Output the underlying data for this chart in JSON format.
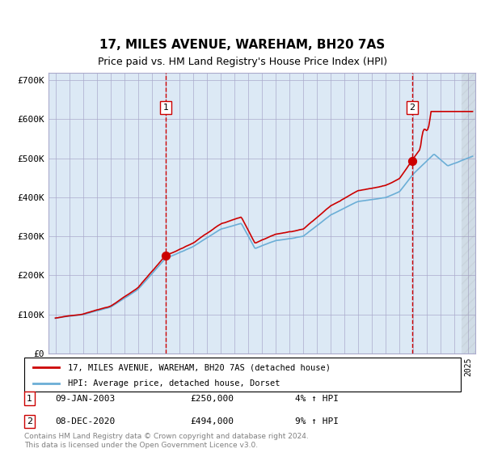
{
  "title": "17, MILES AVENUE, WAREHAM, BH20 7AS",
  "subtitle": "Price paid vs. HM Land Registry's House Price Index (HPI)",
  "bg_color": "#dce9f5",
  "hpi_color": "#6baed6",
  "price_color": "#cc0000",
  "sale1_date_label": "09-JAN-2003",
  "sale1_price": 250000,
  "sale1_pct": "4%",
  "sale1_year": 2003.03,
  "sale2_date_label": "08-DEC-2020",
  "sale2_price": 494000,
  "sale2_pct": "9%",
  "sale2_year": 2020.92,
  "legend_line1": "17, MILES AVENUE, WAREHAM, BH20 7AS (detached house)",
  "legend_line2": "HPI: Average price, detached house, Dorset",
  "footnote": "Contains HM Land Registry data © Crown copyright and database right 2024.\nThis data is licensed under the Open Government Licence v3.0.",
  "yticks": [
    0,
    100000,
    200000,
    300000,
    400000,
    500000,
    600000,
    700000
  ],
  "ytick_labels": [
    "£0",
    "£100K",
    "£200K",
    "£300K",
    "£400K",
    "£500K",
    "£600K",
    "£700K"
  ],
  "xmin": 1994.5,
  "xmax": 2025.5,
  "ymin": 0,
  "ymax": 720000
}
